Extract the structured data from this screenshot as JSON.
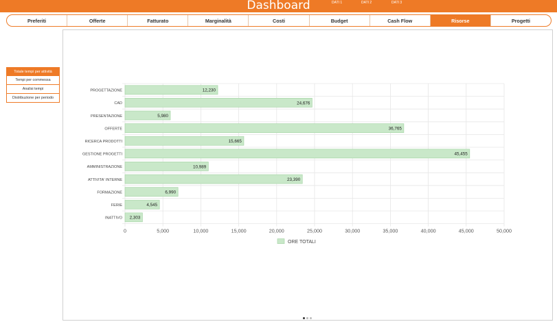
{
  "header": {
    "title": "Dashboard",
    "dati": [
      "DATI 1",
      "DATI 2",
      "DATI 3"
    ]
  },
  "nav": {
    "tabs": [
      {
        "label": "Preferiti",
        "active": false
      },
      {
        "label": "Offerte",
        "active": false
      },
      {
        "label": "Fatturato",
        "active": false
      },
      {
        "label": "Marginalità",
        "active": false
      },
      {
        "label": "Costi",
        "active": false
      },
      {
        "label": "Budget",
        "active": false
      },
      {
        "label": "Cash Flow",
        "active": false
      },
      {
        "label": "Risorse",
        "active": true
      },
      {
        "label": "Progetti",
        "active": false
      }
    ]
  },
  "sidebar": {
    "items": [
      {
        "label": "Totale tempi per attività",
        "active": true
      },
      {
        "label": "Tempi per commessa",
        "active": false
      },
      {
        "label": "Analisi tempi",
        "active": false
      },
      {
        "label": "Distribuzione per periodo",
        "active": false
      }
    ]
  },
  "colors": {
    "accent": "#ee7a26",
    "bar_fill": "#c9e8c9",
    "bar_stroke": "#a8d5a8"
  },
  "chart_data": {
    "type": "bar",
    "orientation": "horizontal",
    "categories": [
      "PROGETTAZIONE",
      "CAD",
      "PRESENTAZIONE",
      "OFFERTE",
      "RICERCA PRODOTTI",
      "GESTIONE PROGETTI",
      "AMMINISTRAZIONE",
      "ATTIVITA' INTERNE",
      "FORMAZIONE",
      "FERIE",
      "INATTIVO"
    ],
    "series": [
      {
        "name": "ORE TOTALI",
        "values": [
          12230,
          24676,
          5980,
          36765,
          15665,
          45455,
          10989,
          23390,
          6990,
          4545,
          2303
        ]
      }
    ],
    "value_labels": [
      "12,230",
      "24,676",
      "5,980",
      "36,765",
      "15,665",
      "45,455",
      "10,989",
      "23,390",
      "6,990",
      "4,545",
      "2,303"
    ],
    "xlim": [
      0,
      50000
    ],
    "xticks": [
      "0",
      "5,000",
      "10,000",
      "15,000",
      "20,000",
      "25,000",
      "30,000",
      "35,000",
      "40,000",
      "45,000",
      "50,000"
    ],
    "grid": true,
    "legend": "bottom"
  },
  "pager": {
    "pages": 3,
    "current": 0
  }
}
